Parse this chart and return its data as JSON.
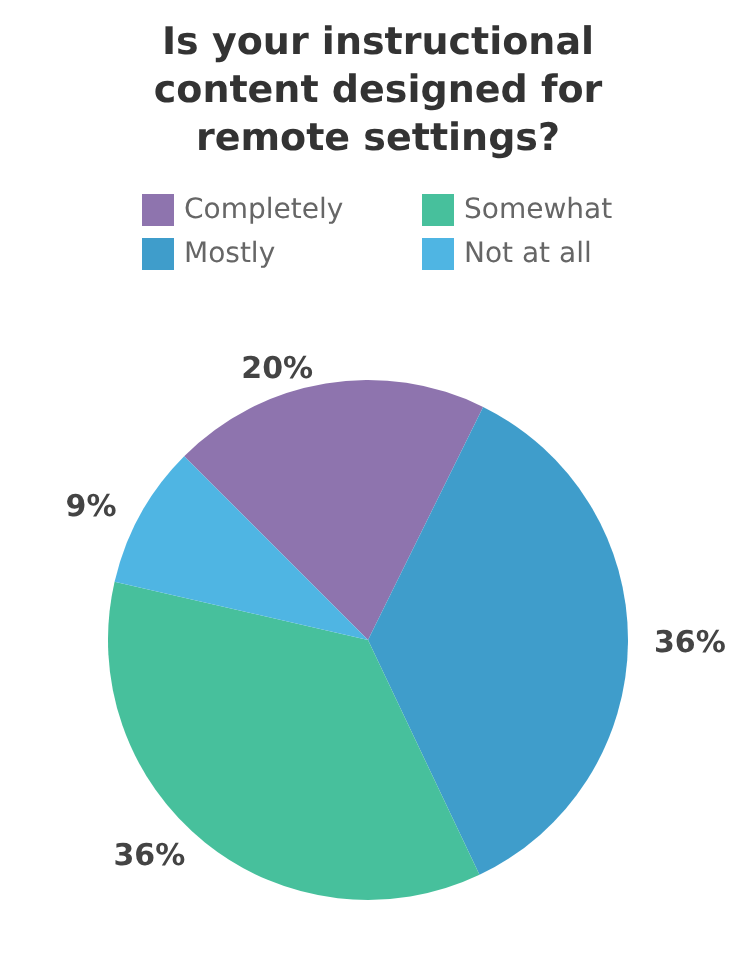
{
  "chart_data": {
    "type": "pie",
    "title": "Is your instructional\ncontent designed for\nremote settings?",
    "categories": [
      "Completely",
      "Mostly",
      "Somewhat",
      "Not at all"
    ],
    "values": [
      20,
      36,
      36,
      9
    ],
    "value_labels": [
      "20%",
      "36%",
      "36%",
      "9%"
    ],
    "colors": [
      "#8e74ae",
      "#3f9dcb",
      "#47c09c",
      "#4fb5e3"
    ],
    "legend": "top"
  }
}
